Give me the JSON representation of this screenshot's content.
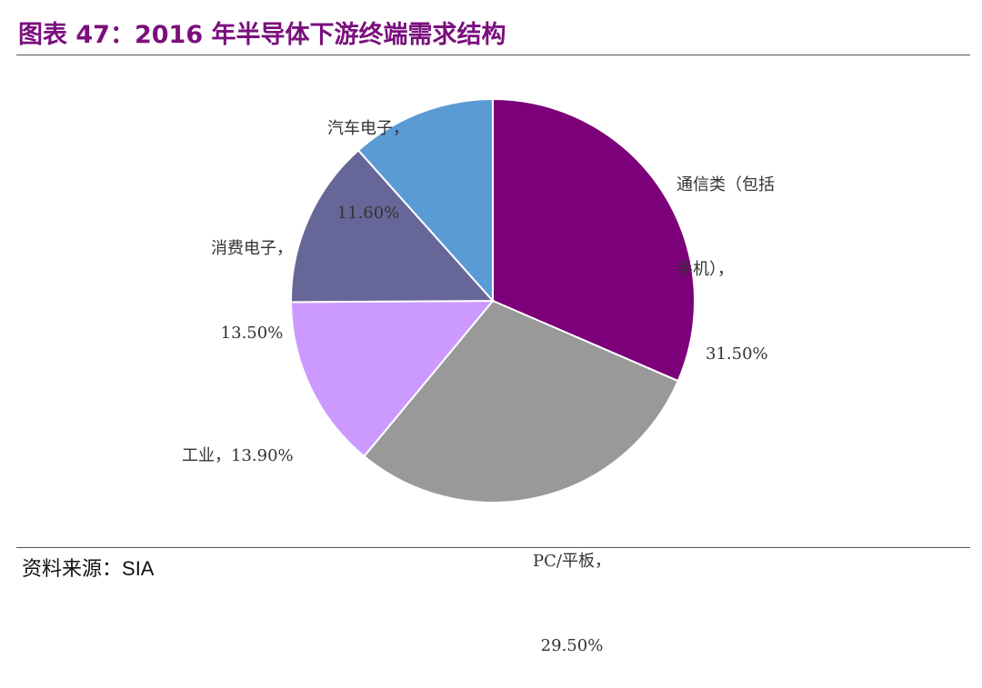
{
  "header": {
    "title": "图表 47：2016 年半导体下游终端需求结构"
  },
  "footer": {
    "source_prefix": "资料来源：",
    "source_value": "SIA"
  },
  "chart_data": {
    "type": "pie",
    "start_angle_deg": 0,
    "direction": "clockwise",
    "slices": [
      {
        "label_lines": [
          "通信类（包括",
          "手机），",
          "31.50%"
        ],
        "value": 31.5,
        "color": "#7b0079"
      },
      {
        "label_lines": [
          "PC/平板，",
          "29.50%"
        ],
        "value": 29.5,
        "color": "#999999"
      },
      {
        "label_lines": [
          "工业，13.90%"
        ],
        "value": 13.9,
        "color": "#cc99ff"
      },
      {
        "label_lines": [
          "消费电子，",
          "13.50%"
        ],
        "value": 13.5,
        "color": "#666699"
      },
      {
        "label_lines": [
          "汽车电子，",
          "11.60%"
        ],
        "value": 11.6,
        "color": "#5b9bd5"
      }
    ]
  }
}
